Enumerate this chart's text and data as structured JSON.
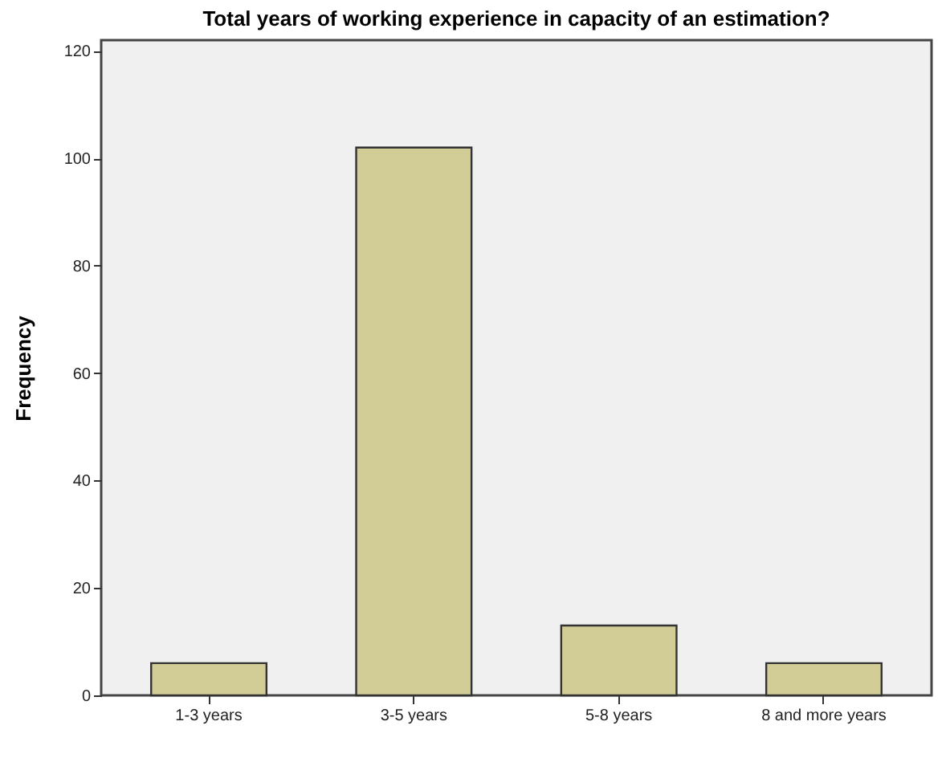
{
  "chart_data": {
    "type": "bar",
    "title": "Total years of working experience in capacity of an estimation?",
    "ylabel": "Frequency",
    "categories": [
      "1-3 years",
      "3-5 years",
      "5-8 years",
      "8 and more years"
    ],
    "values": [
      6,
      102,
      13,
      6
    ],
    "color": "#d2cd96",
    "ylim": [
      0,
      122
    ],
    "yticks": [
      0,
      20,
      40,
      60,
      80,
      100,
      120
    ],
    "grid": false
  }
}
